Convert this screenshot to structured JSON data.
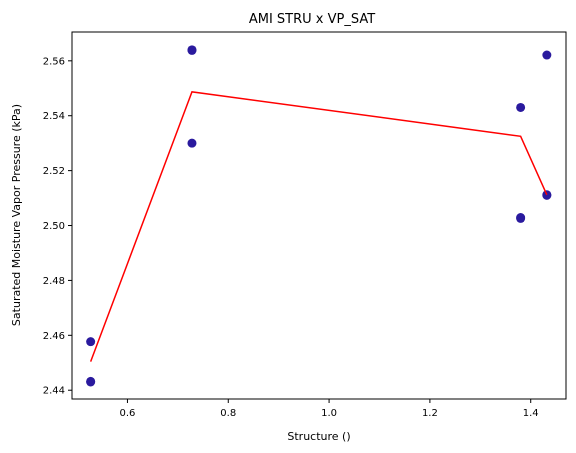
{
  "chart_data": {
    "type": "scatter",
    "title": "AMI STRU x VP_SAT",
    "xlabel": "Structure ()",
    "ylabel": "Saturated Moisture Vapor Pressure (kPa)",
    "xlim": [
      0.49,
      1.47
    ],
    "ylim": [
      2.4368,
      2.5705
    ],
    "x_ticks": [
      0.6,
      0.8,
      1.0,
      1.2,
      1.4
    ],
    "x_tick_labels": [
      "0.6",
      "0.8",
      "1.0",
      "1.2",
      "1.4"
    ],
    "y_ticks": [
      2.44,
      2.46,
      2.48,
      2.5,
      2.52,
      2.54,
      2.56
    ],
    "y_tick_labels": [
      "2.44",
      "2.46",
      "2.48",
      "2.50",
      "2.52",
      "2.54",
      "2.56"
    ],
    "grid": false,
    "series": [
      {
        "type": "scatter",
        "color": "#2a1a9e",
        "points": [
          {
            "x": 0.527,
            "y": 2.4577
          },
          {
            "x": 0.527,
            "y": 2.443
          },
          {
            "x": 0.527,
            "y": 2.4432
          },
          {
            "x": 0.728,
            "y": 2.564
          },
          {
            "x": 0.728,
            "y": 2.5638
          },
          {
            "x": 0.728,
            "y": 2.53
          },
          {
            "x": 1.38,
            "y": 2.543
          },
          {
            "x": 1.38,
            "y": 2.5026
          },
          {
            "x": 1.38,
            "y": 2.5029
          },
          {
            "x": 1.432,
            "y": 2.5621
          },
          {
            "x": 1.432,
            "y": 2.5112
          },
          {
            "x": 1.432,
            "y": 2.511
          }
        ]
      },
      {
        "type": "line",
        "color": "#ff0000",
        "points": [
          {
            "x": 0.527,
            "y": 2.4504
          },
          {
            "x": 0.728,
            "y": 2.5487
          },
          {
            "x": 1.38,
            "y": 2.5325
          },
          {
            "x": 1.432,
            "y": 2.5112
          }
        ]
      }
    ]
  }
}
